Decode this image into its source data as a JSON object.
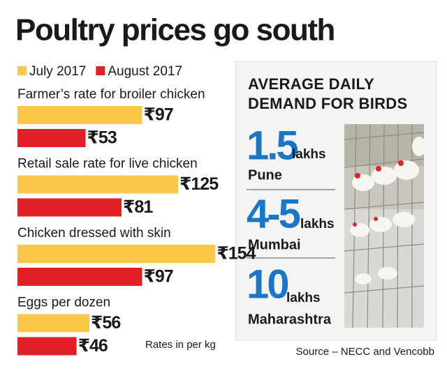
{
  "chart_data": {
    "type": "bar",
    "orientation": "horizontal",
    "title": "Poultry prices go south",
    "categories": [
      "Farmer’s rate for broiler chicken",
      "Retail sale rate for live chicken",
      "Chicken dressed with skin",
      "Eggs per dozen"
    ],
    "series": [
      {
        "name": "July 2017",
        "color": "#fbc84a",
        "values": [
          97,
          125,
          154,
          56
        ],
        "value_labels": [
          "₹97",
          "₹125",
          "₹154",
          "₹56"
        ]
      },
      {
        "name": "August 2017",
        "color": "#e01f26",
        "values": [
          53,
          81,
          97,
          46
        ],
        "value_labels": [
          "₹53",
          "₹81",
          "₹97",
          "₹46"
        ]
      }
    ],
    "note": "Rates in per kg"
  },
  "panel": {
    "title": [
      "AVERAGE DAILY",
      "DEMAND FOR BIRDS"
    ],
    "items": [
      {
        "value": "1.5",
        "unit": "lakhs",
        "place": "Pune"
      },
      {
        "value": "4-5",
        "unit": "lakhs",
        "place": "Mumbai"
      },
      {
        "value": "10",
        "unit": "lakhs",
        "place": "Maharashtra"
      }
    ]
  },
  "source": "Source – NECC and Vencobb"
}
